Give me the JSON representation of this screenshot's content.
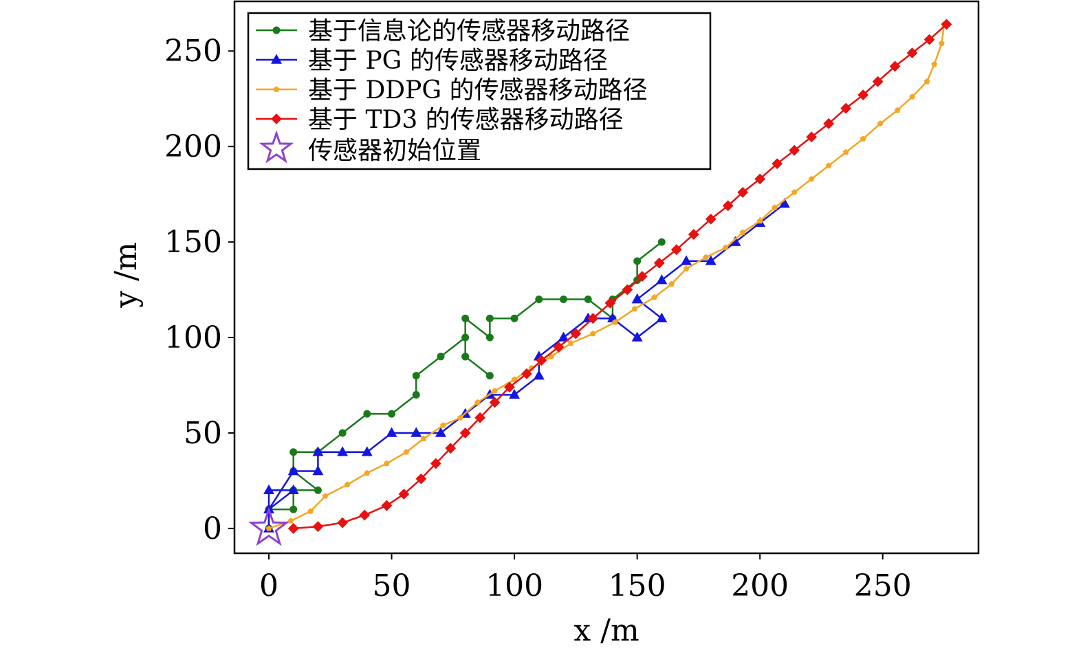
{
  "chart_data": {
    "type": "line",
    "xlabel": "x /m",
    "ylabel": "y /m",
    "xlim": [
      -14,
      289
    ],
    "ylim": [
      -13,
      276
    ],
    "xticks": [
      0,
      50,
      100,
      150,
      200,
      250
    ],
    "yticks": [
      0,
      50,
      100,
      150,
      200,
      250
    ],
    "xtick_labels": [
      "0",
      "50",
      "100",
      "150",
      "200",
      "250"
    ],
    "ytick_labels": [
      "0",
      "50",
      "100",
      "150",
      "200",
      "250"
    ],
    "grid": false,
    "legend_position": "top-left",
    "series": [
      {
        "name": "基于信息论的传感器移动路径",
        "color": "#1a7a1a",
        "marker": "circle",
        "x": [
          0,
          0,
          10,
          10,
          20,
          10,
          10,
          20,
          30,
          40,
          50,
          60,
          60,
          70,
          80,
          80,
          90,
          80,
          80,
          90,
          90,
          100,
          110,
          120,
          130,
          140,
          140,
          150,
          150,
          160
        ],
        "y": [
          0,
          10,
          10,
          20,
          20,
          30,
          40,
          40,
          50,
          60,
          60,
          70,
          80,
          90,
          100,
          90,
          80,
          90,
          110,
          100,
          110,
          110,
          120,
          120,
          120,
          110,
          120,
          130,
          140,
          150
        ]
      },
      {
        "name": "基于 PG 的传感器移动路径",
        "color": "#1515e0",
        "marker": "triangle",
        "x": [
          0,
          0,
          10,
          0,
          10,
          20,
          20,
          30,
          40,
          50,
          60,
          70,
          80,
          90,
          100,
          110,
          110,
          120,
          130,
          140,
          150,
          160,
          150,
          150,
          160,
          170,
          180,
          190,
          200,
          210
        ],
        "y": [
          0,
          20,
          20,
          10,
          30,
          30,
          40,
          40,
          40,
          50,
          50,
          50,
          60,
          70,
          70,
          80,
          90,
          100,
          110,
          110,
          100,
          110,
          120,
          120,
          130,
          140,
          140,
          150,
          160,
          170
        ]
      },
      {
        "name": "基于 DDPG 的传感器移动路径",
        "color": "#f5a623",
        "marker": "pentagon",
        "x": [
          0,
          9,
          17,
          23,
          32,
          40,
          48,
          56,
          63,
          71,
          78,
          85,
          92,
          100,
          107,
          115,
          123,
          132,
          141,
          149,
          157,
          164,
          170,
          178,
          186,
          193,
          200,
          206,
          214,
          221,
          228,
          235,
          242,
          249,
          256,
          262,
          268,
          271,
          274,
          275
        ],
        "y": [
          0,
          4,
          9,
          17,
          23,
          29,
          34,
          40,
          47,
          54,
          58,
          66,
          72,
          78,
          84,
          90,
          97,
          102,
          108,
          115,
          121,
          128,
          136,
          142,
          147,
          155,
          161,
          168,
          176,
          183,
          190,
          197,
          204,
          212,
          219,
          226,
          234,
          243,
          254,
          264
        ]
      },
      {
        "name": "基于 TD3 的传感器移动路径",
        "color": "#e81010",
        "marker": "diamond",
        "x": [
          10,
          20,
          30,
          39,
          48,
          55,
          62,
          68,
          74,
          80,
          86,
          92,
          98,
          105,
          111,
          118,
          125,
          132,
          139,
          146,
          152,
          159,
          166,
          173,
          180,
          187,
          193,
          200,
          207,
          214,
          221,
          228,
          235,
          242,
          248,
          255,
          262,
          269,
          276
        ],
        "y": [
          0,
          1,
          3,
          7,
          12,
          18,
          26,
          34,
          42,
          50,
          58,
          66,
          74,
          81,
          88,
          95,
          102,
          110,
          118,
          125,
          132,
          139,
          146,
          154,
          162,
          169,
          176,
          183,
          191,
          198,
          205,
          212,
          220,
          227,
          234,
          242,
          249,
          256,
          264
        ]
      }
    ],
    "start_marker": {
      "name": "传感器初始位置",
      "color": "#8e44c8",
      "marker": "star",
      "x": 0,
      "y": 0
    }
  }
}
